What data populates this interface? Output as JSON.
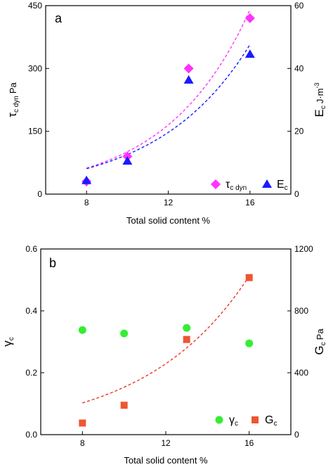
{
  "chart_data": [
    {
      "type": "scatter",
      "panel_label": "a",
      "xlabel": "Total solid content  %",
      "ylabel_left": {
        "symbol": "τ",
        "subscript": "c dyn",
        "unit": "Pa"
      },
      "ylabel_right": {
        "symbol": "E",
        "subscript": "c",
        "unit": "J·m",
        "superscript": "-3"
      },
      "xlim": [
        6,
        18
      ],
      "ylim_left": [
        0,
        450
      ],
      "ylim_right": [
        0,
        60
      ],
      "xticks": [
        8,
        12,
        16
      ],
      "xtick_labels": [
        "8",
        "12",
        "16"
      ],
      "yticks_left": [
        0,
        150,
        300,
        450
      ],
      "ytick_labels_left": [
        "0",
        "150",
        "300",
        "450"
      ],
      "yticks_right": [
        0,
        20,
        40,
        60
      ],
      "ytick_labels_right": [
        "0",
        "20",
        "40",
        "60"
      ],
      "grid": false,
      "legend_position": "bottom-right",
      "series": [
        {
          "name": "τc dyn",
          "name_main": "τ",
          "name_sub": "c dyn",
          "axis": "left",
          "marker": "diamond",
          "color": "#ff33ff",
          "x": [
            8,
            10,
            13,
            16
          ],
          "y": [
            30,
            90,
            300,
            420
          ],
          "fit": {
            "style": "dashed",
            "color": "#ff33ff",
            "x": [
              8,
              16
            ],
            "y": [
              62,
              440
            ]
          }
        },
        {
          "name": "Ec",
          "name_main": "E",
          "name_sub": "c",
          "axis": "right",
          "marker": "triangle",
          "color": "#1a1aff",
          "x": [
            8,
            10,
            13,
            16
          ],
          "y": [
            4.3,
            10.5,
            36.3,
            44.5
          ],
          "fit": {
            "style": "dashed",
            "color": "#1a1aff",
            "x": [
              8,
              16
            ],
            "y": [
              8.1,
              47.6
            ]
          }
        }
      ]
    },
    {
      "type": "scatter",
      "panel_label": "b",
      "xlabel": "Total solid content  %",
      "ylabel_left": {
        "symbol": "γ",
        "subscript": "c",
        "unit": ""
      },
      "ylabel_right": {
        "symbol": "G",
        "subscript": "c",
        "unit": "Pa"
      },
      "xlim": [
        6,
        18
      ],
      "ylim_left": [
        0,
        0.6
      ],
      "ylim_right": [
        0,
        1200
      ],
      "xticks": [
        8,
        12,
        16
      ],
      "xtick_labels": [
        "8",
        "12",
        "16"
      ],
      "yticks_left": [
        0,
        0.2,
        0.4,
        0.6
      ],
      "ytick_labels_left": [
        "0.0",
        "0.2",
        "0.4",
        "0.6"
      ],
      "yticks_right": [
        0,
        400,
        800,
        1200
      ],
      "ytick_labels_right": [
        "0",
        "400",
        "800",
        "1200"
      ],
      "grid": false,
      "legend_position": "bottom-right",
      "series": [
        {
          "name": "γc",
          "name_main": "γ",
          "name_sub": "c",
          "axis": "left",
          "marker": "circle",
          "color": "#33ee33",
          "x": [
            8,
            10,
            13,
            16
          ],
          "y": [
            0.338,
            0.327,
            0.345,
            0.295
          ]
        },
        {
          "name": "Gc",
          "name_main": "G",
          "name_sub": "c",
          "axis": "right",
          "marker": "square",
          "color": "#ee5533",
          "x": [
            8,
            10,
            13,
            16
          ],
          "y": [
            75,
            190,
            615,
            1015
          ],
          "fit": {
            "style": "dashed",
            "color": "#ee3322",
            "x": [
              8,
              16
            ],
            "y": [
              205,
              1025
            ]
          }
        }
      ]
    }
  ]
}
